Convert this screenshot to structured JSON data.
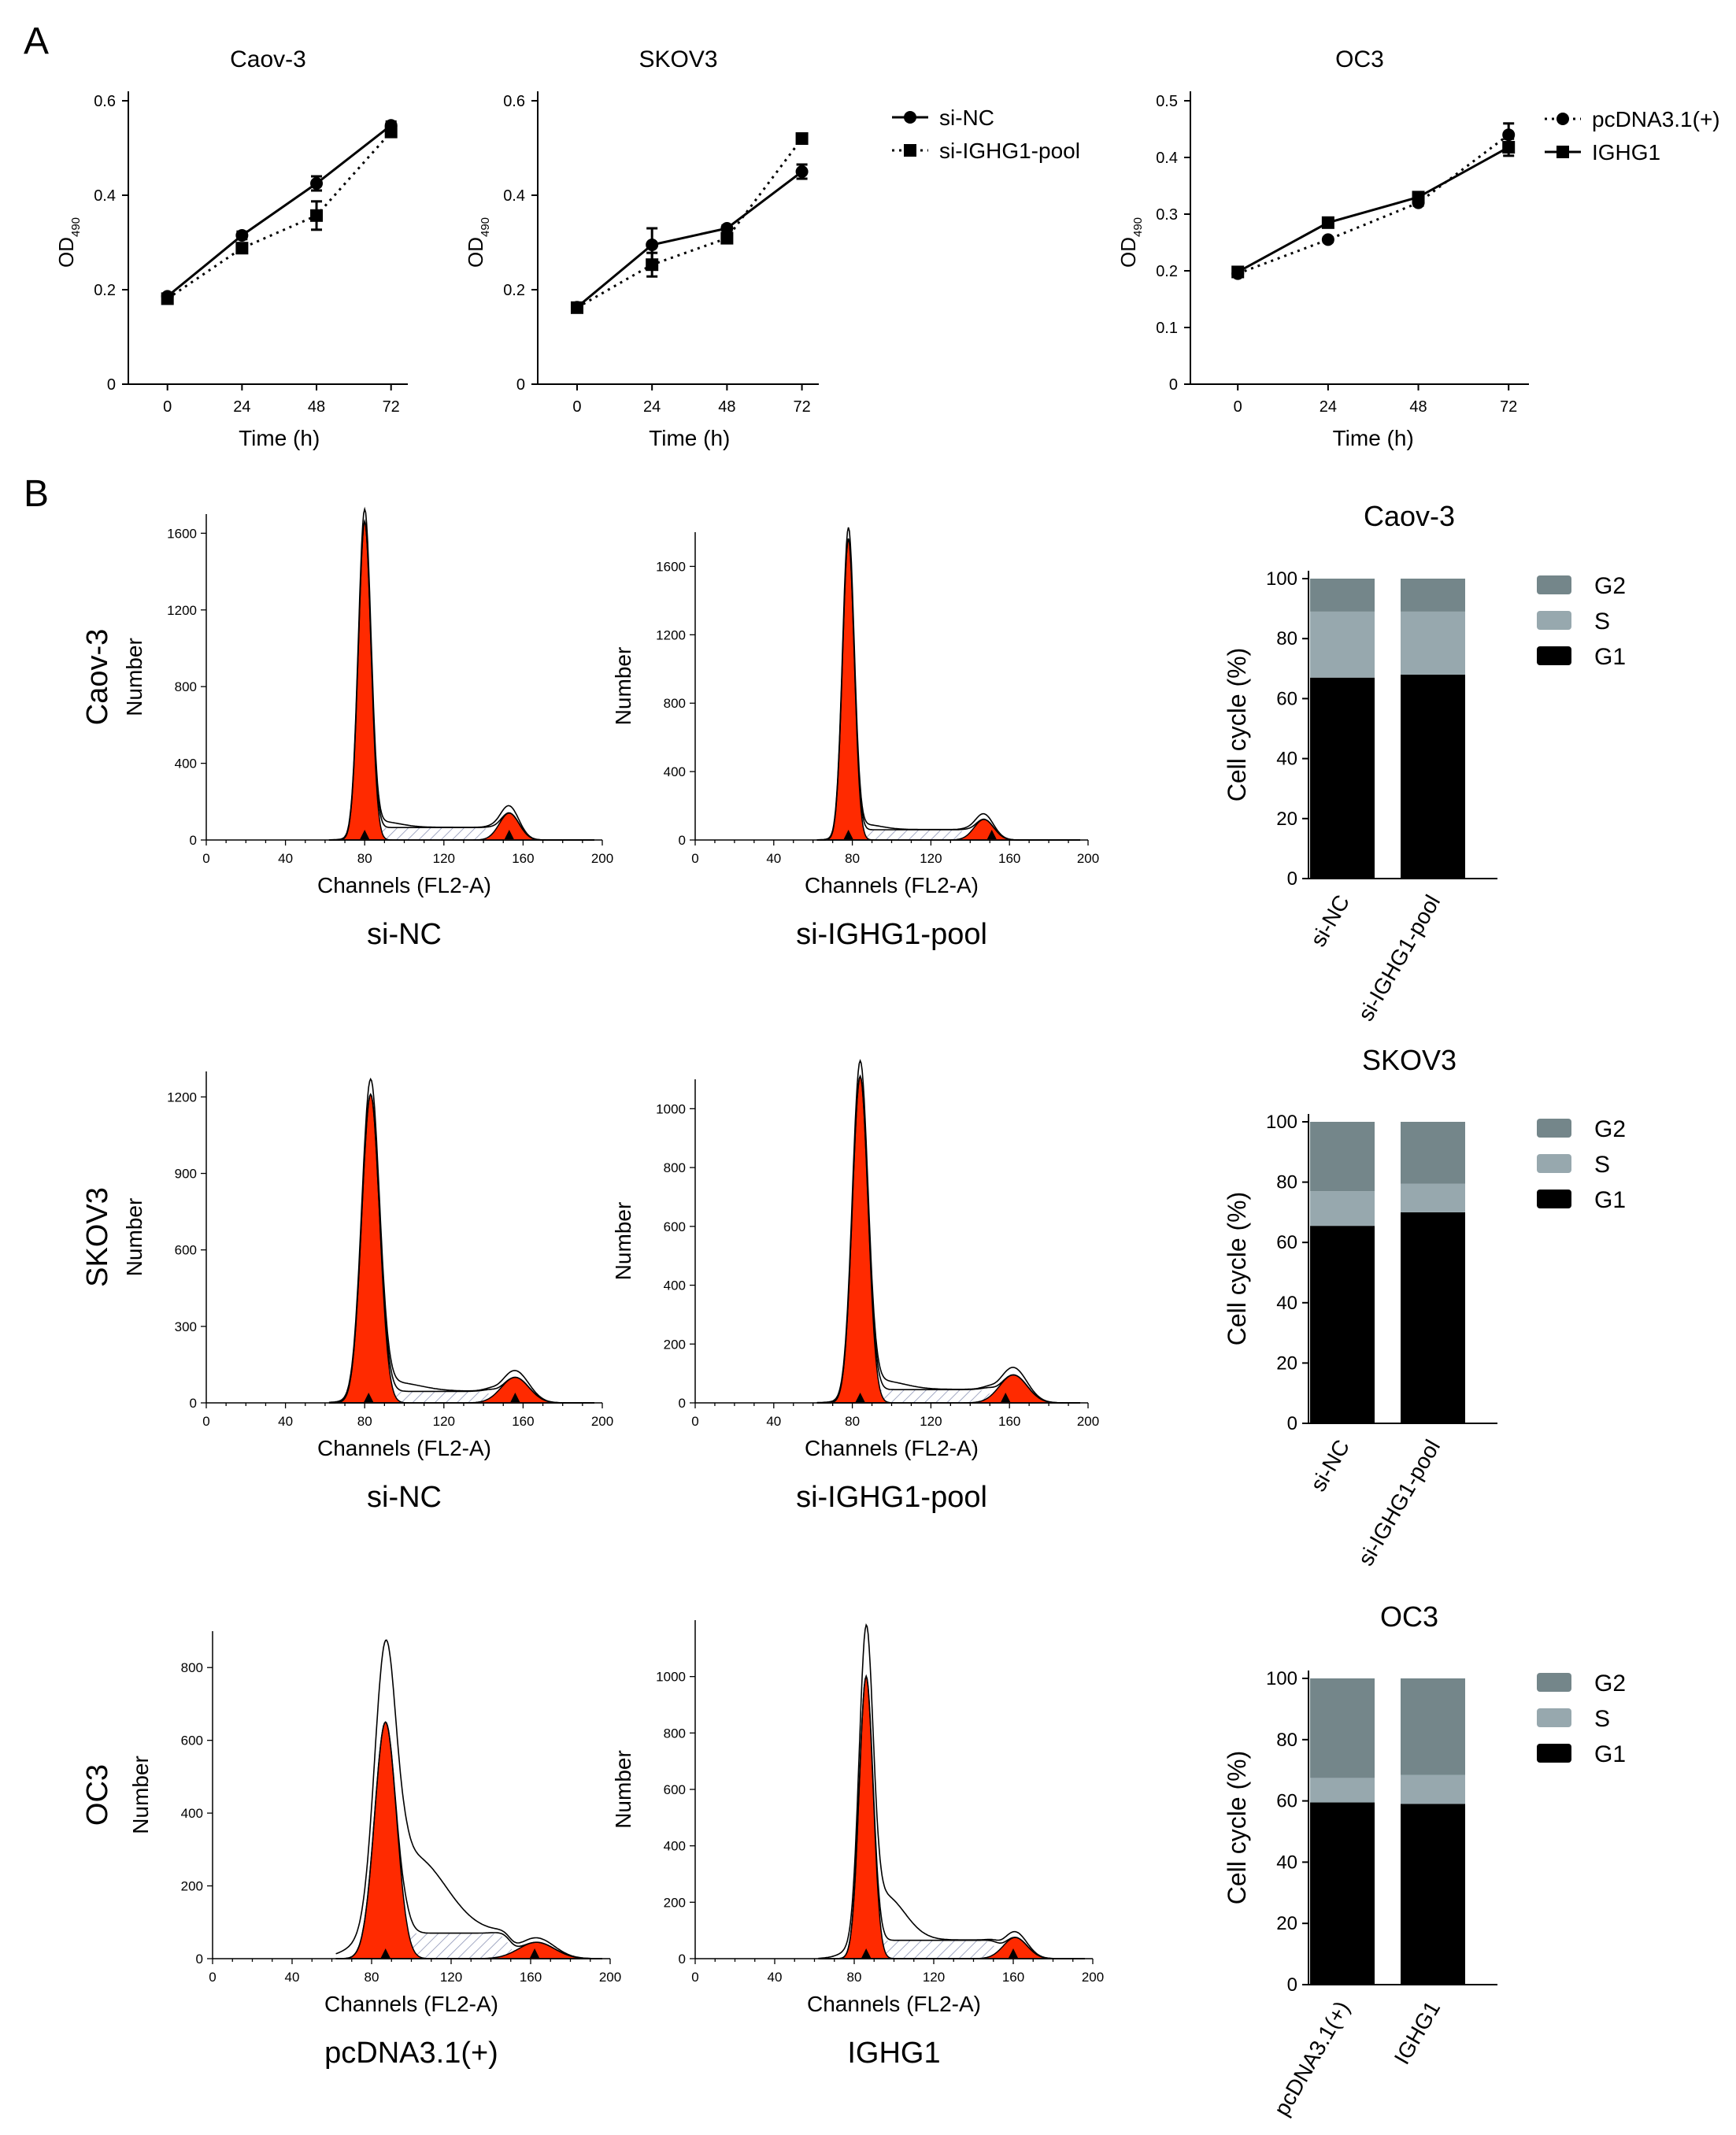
{
  "panels": {
    "a": "A",
    "b": "B"
  },
  "line_legend_knockdown": [
    "si-NC",
    "si-IGHG1-pool"
  ],
  "line_legend_overexpression": [
    "pcDNA3.1(+)",
    "IGHG1"
  ],
  "flow_xlabel": "Channels (FL2-A)",
  "flow_ylabel": "Number",
  "bar_ylabel": "Cell cycle (%)",
  "bar_legend": [
    "G2",
    "S",
    "G1"
  ],
  "colors": {
    "axis": "#000000",
    "G1": "#000000",
    "S": "#97a8ae",
    "G2": "#74868a",
    "flow_fill": "#ff2a00",
    "flow_outline": "#000000",
    "flow_hatch": "#8c94b5"
  },
  "rows": [
    {
      "cell_line": "Caov-3",
      "conditions": [
        "si-NC",
        "si-IGHG1-pool"
      ],
      "line_chart": {
        "type": "line",
        "title": "Caov-3",
        "xlabel": "Time (h)",
        "ylabel": "OD490",
        "x": [
          0,
          24,
          48,
          72
        ],
        "ylim": [
          0,
          0.6
        ],
        "yticks": [
          0,
          0.2,
          0.4,
          0.6
        ],
        "series": [
          {
            "name": "si-NC",
            "values": [
              0.186,
              0.315,
              0.425,
              0.548
            ],
            "err": [
              0.005,
              0.008,
              0.015,
              0.008
            ],
            "marker": "circle",
            "dotted": false
          },
          {
            "name": "si-IGHG1-pool",
            "values": [
              0.181,
              0.288,
              0.357,
              0.534
            ],
            "err": [
              0.005,
              0.007,
              0.03,
              0.01
            ],
            "marker": "square",
            "dotted": true
          }
        ]
      },
      "histograms": [
        {
          "ylim": [
            0,
            1700
          ],
          "yticks": [
            0,
            400,
            800,
            1200,
            1600
          ],
          "xlim": [
            0,
            200
          ],
          "xticks": [
            0,
            40,
            80,
            120,
            160,
            200
          ],
          "g1_peak": 80,
          "g1_height": 1660,
          "g1_width": 3.2,
          "g2_peak": 153,
          "g2_height": 140,
          "g2_width": 5,
          "s_level": 65,
          "outline_excess": 30,
          "arrows": [
            80,
            153
          ]
        },
        {
          "ylim": [
            0,
            1800
          ],
          "yticks": [
            0,
            400,
            800,
            1200,
            1600
          ],
          "xlim": [
            0,
            200
          ],
          "xticks": [
            0,
            40,
            80,
            120,
            160,
            200
          ],
          "g1_peak": 78,
          "g1_height": 1760,
          "g1_width": 3,
          "g2_peak": 147,
          "g2_height": 120,
          "g2_width": 5,
          "s_level": 60,
          "outline_excess": 30,
          "arrows": [
            78,
            151
          ]
        }
      ],
      "bar_chart": {
        "type": "bar",
        "title": "Caov-3",
        "categories": [
          "si-NC",
          "si-IGHG1-pool"
        ],
        "ylim": [
          0,
          100
        ],
        "yticks": [
          0,
          20,
          40,
          60,
          80,
          100
        ],
        "series": [
          {
            "name": "G1",
            "values": [
              67,
              68
            ]
          },
          {
            "name": "S",
            "values": [
              22,
              21
            ]
          },
          {
            "name": "G2",
            "values": [
              11,
              11
            ]
          }
        ]
      }
    },
    {
      "cell_line": "SKOV3",
      "conditions": [
        "si-NC",
        "si-IGHG1-pool"
      ],
      "line_chart": {
        "type": "line",
        "title": "SKOV3",
        "xlabel": "Time (h)",
        "ylabel": "OD490",
        "x": [
          0,
          24,
          48,
          72
        ],
        "ylim": [
          0,
          0.6
        ],
        "yticks": [
          0,
          0.2,
          0.4,
          0.6
        ],
        "series": [
          {
            "name": "si-NC",
            "values": [
              0.163,
              0.295,
              0.33,
              0.45
            ],
            "err": [
              0.005,
              0.035,
              0.006,
              0.015
            ],
            "marker": "circle",
            "dotted": false
          },
          {
            "name": "si-IGHG1-pool",
            "values": [
              0.162,
              0.253,
              0.309,
              0.52
            ],
            "err": [
              0.005,
              0.025,
              0.008,
              0.007
            ],
            "marker": "square",
            "dotted": true
          }
        ]
      },
      "histograms": [
        {
          "ylim": [
            0,
            1300
          ],
          "yticks": [
            0,
            300,
            600,
            900,
            1200
          ],
          "xlim": [
            0,
            200
          ],
          "xticks": [
            0,
            40,
            80,
            120,
            160,
            200
          ],
          "g1_peak": 83,
          "g1_height": 1210,
          "g1_width": 4.5,
          "g2_peak": 156,
          "g2_height": 100,
          "g2_width": 7,
          "s_level": 45,
          "outline_excess": 35,
          "arrows": [
            82,
            156
          ]
        },
        {
          "ylim": [
            0,
            1100
          ],
          "yticks": [
            0,
            200,
            400,
            600,
            800,
            1000
          ],
          "xlim": [
            0,
            200
          ],
          "xticks": [
            0,
            40,
            80,
            120,
            160,
            200
          ],
          "g1_peak": 84,
          "g1_height": 1110,
          "g1_width": 4,
          "g2_peak": 162,
          "g2_height": 95,
          "g2_width": 7,
          "s_level": 45,
          "outline_excess": 30,
          "arrows": [
            84,
            158
          ]
        }
      ],
      "bar_chart": {
        "type": "bar",
        "title": "SKOV3",
        "categories": [
          "si-NC",
          "si-IGHG1-pool"
        ],
        "ylim": [
          0,
          100
        ],
        "yticks": [
          0,
          20,
          40,
          60,
          80,
          100
        ],
        "series": [
          {
            "name": "G1",
            "values": [
              65.5,
              70
            ]
          },
          {
            "name": "S",
            "values": [
              11.5,
              9.5
            ]
          },
          {
            "name": "G2",
            "values": [
              23,
              20.5
            ]
          }
        ]
      }
    },
    {
      "cell_line": "OC3",
      "conditions": [
        "pcDNA3.1(+)",
        "IGHG1"
      ],
      "line_chart": {
        "type": "line",
        "title": "OC3",
        "xlabel": "Time (h)",
        "ylabel": "OD490",
        "x": [
          0,
          24,
          48,
          72
        ],
        "ylim": [
          0,
          0.5
        ],
        "yticks": [
          0,
          0.1,
          0.2,
          0.3,
          0.4,
          0.5
        ],
        "series": [
          {
            "name": "pcDNA3.1(+)",
            "values": [
              0.195,
              0.255,
              0.32,
              0.44
            ],
            "err": [
              0.004,
              0.004,
              0.005,
              0.02
            ],
            "marker": "circle",
            "dotted": true
          },
          {
            "name": "IGHG1",
            "values": [
              0.198,
              0.285,
              0.33,
              0.418
            ],
            "err": [
              0.004,
              0.004,
              0.005,
              0.015
            ],
            "marker": "square",
            "dotted": false
          }
        ]
      },
      "histograms": [
        {
          "ylim": [
            0,
            900
          ],
          "yticks": [
            0,
            200,
            400,
            600,
            800
          ],
          "xlim": [
            0,
            200
          ],
          "xticks": [
            0,
            40,
            80,
            120,
            160,
            200
          ],
          "g1_peak": 87,
          "g1_height": 650,
          "g1_width": 5.5,
          "g2_peak": 163,
          "g2_height": 45,
          "g2_width": 9,
          "s_level": 70,
          "outline_excess": 210,
          "arrows": [
            87,
            162
          ]
        },
        {
          "ylim": [
            0,
            1200
          ],
          "yticks": [
            0,
            200,
            400,
            600,
            800,
            1000
          ],
          "xlim": [
            0,
            200
          ],
          "xticks": [
            0,
            40,
            80,
            120,
            160,
            200
          ],
          "g1_peak": 86,
          "g1_height": 1000,
          "g1_width": 3.5,
          "g2_peak": 161,
          "g2_height": 75,
          "g2_width": 6,
          "s_level": 65,
          "outline_excess": 160,
          "arrows": [
            86,
            160
          ]
        }
      ],
      "bar_chart": {
        "type": "bar",
        "title": "OC3",
        "categories": [
          "pcDNA3.1(+)",
          "IGHG1"
        ],
        "ylim": [
          0,
          100
        ],
        "yticks": [
          0,
          20,
          40,
          60,
          80,
          100
        ],
        "series": [
          {
            "name": "G1",
            "values": [
              59.5,
              59
            ]
          },
          {
            "name": "S",
            "values": [
              8,
              9.5
            ]
          },
          {
            "name": "G2",
            "values": [
              32.5,
              31.5
            ]
          }
        ]
      }
    }
  ]
}
